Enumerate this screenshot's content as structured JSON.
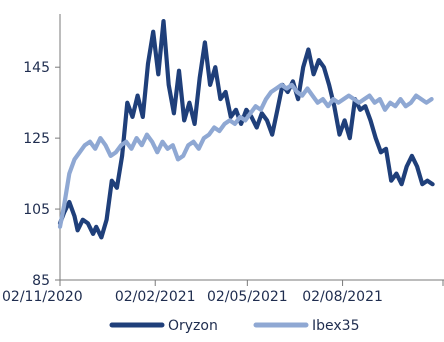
{
  "chart_data": {
    "type": "line",
    "title": "",
    "xlabel": "",
    "ylabel": "",
    "ylim": [
      85,
      160
    ],
    "yticks": [
      85,
      105,
      125,
      145
    ],
    "xlim": [
      "2020-11-02",
      "2021-11-08"
    ],
    "xticks": [
      {
        "date": "2020-11-02",
        "label": "02/11/2020"
      },
      {
        "date": "2021-02-02",
        "label": "02/02/2021"
      },
      {
        "date": "2021-05-02",
        "label": "02/05/2021"
      },
      {
        "date": "2021-08-02",
        "label": "02/08/2021"
      }
    ],
    "grid": false,
    "legend_position": "bottom",
    "series": [
      {
        "name": "Oryzon",
        "color": "#1f3f7a",
        "points": [
          [
            "2020-11-02",
            101
          ],
          [
            "2020-11-06",
            104
          ],
          [
            "2020-11-11",
            107
          ],
          [
            "2020-11-16",
            103
          ],
          [
            "2020-11-19",
            99
          ],
          [
            "2020-11-24",
            102
          ],
          [
            "2020-11-29",
            101
          ],
          [
            "2020-12-04",
            98
          ],
          [
            "2020-12-07",
            100
          ],
          [
            "2020-12-12",
            97
          ],
          [
            "2020-12-17",
            102
          ],
          [
            "2020-12-22",
            113
          ],
          [
            "2020-12-27",
            111
          ],
          [
            "2021-01-01",
            120
          ],
          [
            "2021-01-06",
            135
          ],
          [
            "2021-01-11",
            131
          ],
          [
            "2021-01-16",
            137
          ],
          [
            "2021-01-21",
            131
          ],
          [
            "2021-01-26",
            146
          ],
          [
            "2021-01-31",
            155
          ],
          [
            "2021-02-05",
            143
          ],
          [
            "2021-02-10",
            158
          ],
          [
            "2021-02-15",
            140
          ],
          [
            "2021-02-20",
            132
          ],
          [
            "2021-02-25",
            144
          ],
          [
            "2021-03-02",
            130
          ],
          [
            "2021-03-07",
            135
          ],
          [
            "2021-03-12",
            129
          ],
          [
            "2021-03-17",
            142
          ],
          [
            "2021-03-22",
            152
          ],
          [
            "2021-03-27",
            140
          ],
          [
            "2021-04-01",
            145
          ],
          [
            "2021-04-06",
            136
          ],
          [
            "2021-04-11",
            138
          ],
          [
            "2021-04-16",
            131
          ],
          [
            "2021-04-21",
            133
          ],
          [
            "2021-04-26",
            129
          ],
          [
            "2021-05-01",
            133
          ],
          [
            "2021-05-06",
            131
          ],
          [
            "2021-05-11",
            128
          ],
          [
            "2021-05-16",
            132
          ],
          [
            "2021-05-21",
            130
          ],
          [
            "2021-05-26",
            126
          ],
          [
            "2021-05-31",
            133
          ],
          [
            "2021-06-05",
            140
          ],
          [
            "2021-06-10",
            138
          ],
          [
            "2021-06-15",
            141
          ],
          [
            "2021-06-20",
            136
          ],
          [
            "2021-06-25",
            145
          ],
          [
            "2021-06-30",
            150
          ],
          [
            "2021-07-05",
            143
          ],
          [
            "2021-07-10",
            147
          ],
          [
            "2021-07-15",
            145
          ],
          [
            "2021-07-20",
            140
          ],
          [
            "2021-07-25",
            134
          ],
          [
            "2021-07-30",
            126
          ],
          [
            "2021-08-04",
            130
          ],
          [
            "2021-08-09",
            125
          ],
          [
            "2021-08-14",
            136
          ],
          [
            "2021-08-19",
            133
          ],
          [
            "2021-08-24",
            134
          ],
          [
            "2021-08-29",
            130
          ],
          [
            "2021-09-03",
            125
          ],
          [
            "2021-09-08",
            121
          ],
          [
            "2021-09-13",
            122
          ],
          [
            "2021-09-18",
            113
          ],
          [
            "2021-09-23",
            115
          ],
          [
            "2021-09-28",
            112
          ],
          [
            "2021-10-03",
            117
          ],
          [
            "2021-10-08",
            120
          ],
          [
            "2021-10-13",
            117
          ],
          [
            "2021-10-18",
            112
          ],
          [
            "2021-10-23",
            113
          ],
          [
            "2021-10-28",
            112
          ]
        ]
      },
      {
        "name": "Ibex35",
        "color": "#8fa8d3",
        "points": [
          [
            "2020-11-02",
            100
          ],
          [
            "2020-11-06",
            106
          ],
          [
            "2020-11-11",
            115
          ],
          [
            "2020-11-16",
            119
          ],
          [
            "2020-11-21",
            121
          ],
          [
            "2020-11-26",
            123
          ],
          [
            "2020-12-01",
            124
          ],
          [
            "2020-12-06",
            122
          ],
          [
            "2020-12-11",
            125
          ],
          [
            "2020-12-16",
            123
          ],
          [
            "2020-12-21",
            120
          ],
          [
            "2020-12-26",
            121
          ],
          [
            "2020-12-31",
            123
          ],
          [
            "2021-01-05",
            124
          ],
          [
            "2021-01-10",
            122
          ],
          [
            "2021-01-15",
            125
          ],
          [
            "2021-01-20",
            123
          ],
          [
            "2021-01-25",
            126
          ],
          [
            "2021-01-30",
            124
          ],
          [
            "2021-02-04",
            121
          ],
          [
            "2021-02-09",
            124
          ],
          [
            "2021-02-14",
            122
          ],
          [
            "2021-02-19",
            123
          ],
          [
            "2021-02-24",
            119
          ],
          [
            "2021-03-01",
            120
          ],
          [
            "2021-03-06",
            123
          ],
          [
            "2021-03-11",
            124
          ],
          [
            "2021-03-16",
            122
          ],
          [
            "2021-03-21",
            125
          ],
          [
            "2021-03-26",
            126
          ],
          [
            "2021-03-31",
            128
          ],
          [
            "2021-04-05",
            127
          ],
          [
            "2021-04-10",
            129
          ],
          [
            "2021-04-15",
            130
          ],
          [
            "2021-04-20",
            129
          ],
          [
            "2021-04-25",
            131
          ],
          [
            "2021-04-30",
            130
          ],
          [
            "2021-05-05",
            132
          ],
          [
            "2021-05-10",
            134
          ],
          [
            "2021-05-15",
            133
          ],
          [
            "2021-05-20",
            136
          ],
          [
            "2021-05-25",
            138
          ],
          [
            "2021-05-30",
            139
          ],
          [
            "2021-06-04",
            140
          ],
          [
            "2021-06-09",
            139
          ],
          [
            "2021-06-14",
            140
          ],
          [
            "2021-06-19",
            138
          ],
          [
            "2021-06-24",
            137
          ],
          [
            "2021-06-29",
            139
          ],
          [
            "2021-07-04",
            137
          ],
          [
            "2021-07-09",
            135
          ],
          [
            "2021-07-14",
            136
          ],
          [
            "2021-07-19",
            134
          ],
          [
            "2021-07-24",
            136
          ],
          [
            "2021-07-29",
            135
          ],
          [
            "2021-08-03",
            136
          ],
          [
            "2021-08-08",
            137
          ],
          [
            "2021-08-13",
            136
          ],
          [
            "2021-08-18",
            135
          ],
          [
            "2021-08-23",
            136
          ],
          [
            "2021-08-28",
            137
          ],
          [
            "2021-09-02",
            135
          ],
          [
            "2021-09-07",
            136
          ],
          [
            "2021-09-12",
            133
          ],
          [
            "2021-09-17",
            135
          ],
          [
            "2021-09-22",
            134
          ],
          [
            "2021-09-27",
            136
          ],
          [
            "2021-10-02",
            134
          ],
          [
            "2021-10-07",
            135
          ],
          [
            "2021-10-12",
            137
          ],
          [
            "2021-10-17",
            136
          ],
          [
            "2021-10-22",
            135
          ],
          [
            "2021-10-27",
            136
          ]
        ]
      }
    ]
  }
}
